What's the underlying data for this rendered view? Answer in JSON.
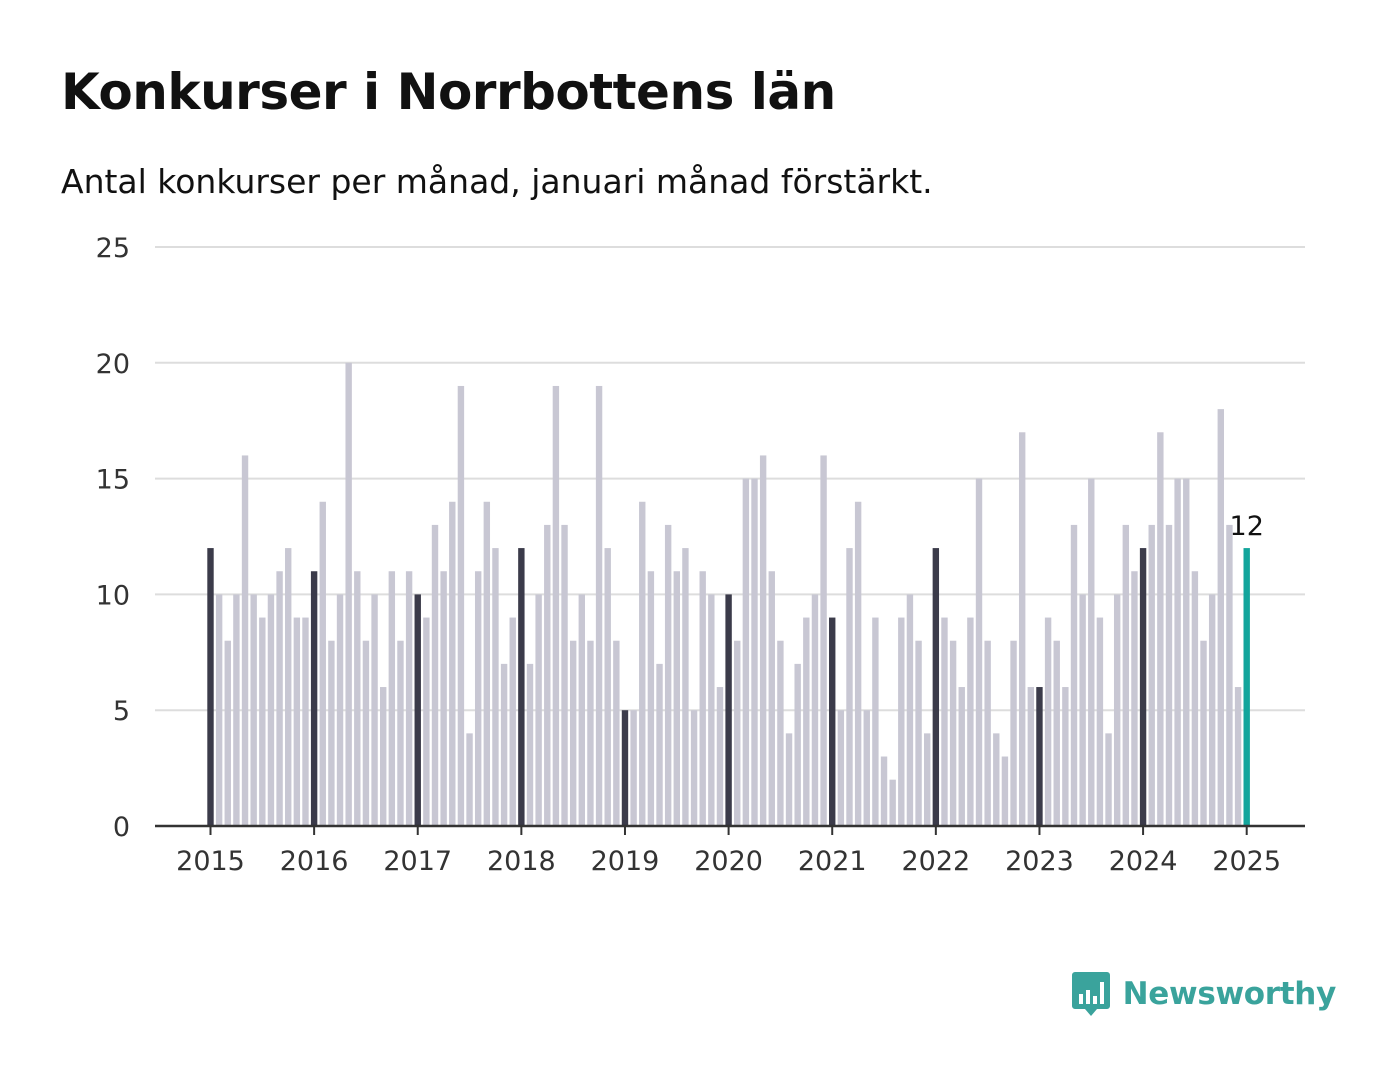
{
  "title": "Konkurser i Norrbottens län",
  "subtitle": "Antal konkurser per månad, januari månad förstärkt.",
  "brand": {
    "name": "Newsworthy",
    "color": "#3aa39c",
    "icon": "bar-chart-speech-bubble-icon"
  },
  "colors": {
    "january": "#3b3b4a",
    "other": "#c8c7d3",
    "latest": "#13a59c",
    "grid": "#dddddd",
    "axis": "#333333",
    "text": "#333333"
  },
  "chart_data": {
    "type": "bar",
    "title": "Konkurser i Norrbottens län",
    "subtitle": "Antal konkurser per månad, januari månad förstärkt.",
    "xlabel": "",
    "ylabel": "",
    "ylim": [
      0,
      25
    ],
    "yticks": [
      0,
      5,
      10,
      15,
      20,
      25
    ],
    "grid": true,
    "start_month": "2015-01",
    "xtick_labels": [
      "2015",
      "2016",
      "2017",
      "2018",
      "2019",
      "2020",
      "2021",
      "2022",
      "2023",
      "2024",
      "2025"
    ],
    "values": [
      12,
      10,
      8,
      10,
      16,
      10,
      9,
      10,
      11,
      12,
      9,
      9,
      11,
      14,
      8,
      10,
      20,
      11,
      8,
      10,
      6,
      11,
      8,
      11,
      10,
      9,
      13,
      11,
      14,
      19,
      4,
      11,
      14,
      12,
      7,
      9,
      12,
      7,
      10,
      13,
      19,
      13,
      8,
      10,
      8,
      19,
      12,
      8,
      5,
      5,
      14,
      11,
      7,
      13,
      11,
      12,
      5,
      11,
      10,
      6,
      10,
      8,
      15,
      15,
      16,
      11,
      8,
      4,
      7,
      9,
      10,
      16,
      9,
      5,
      12,
      14,
      5,
      9,
      3,
      2,
      9,
      10,
      8,
      4,
      12,
      9,
      8,
      6,
      9,
      15,
      8,
      4,
      3,
      8,
      17,
      6,
      6,
      9,
      8,
      6,
      13,
      10,
      15,
      9,
      4,
      10,
      13,
      11,
      12,
      13,
      17,
      13,
      15,
      15,
      11,
      8,
      10,
      18,
      13,
      6,
      12
    ],
    "highlight": "january",
    "annotation": {
      "text": "12",
      "target": "2025-01"
    }
  }
}
